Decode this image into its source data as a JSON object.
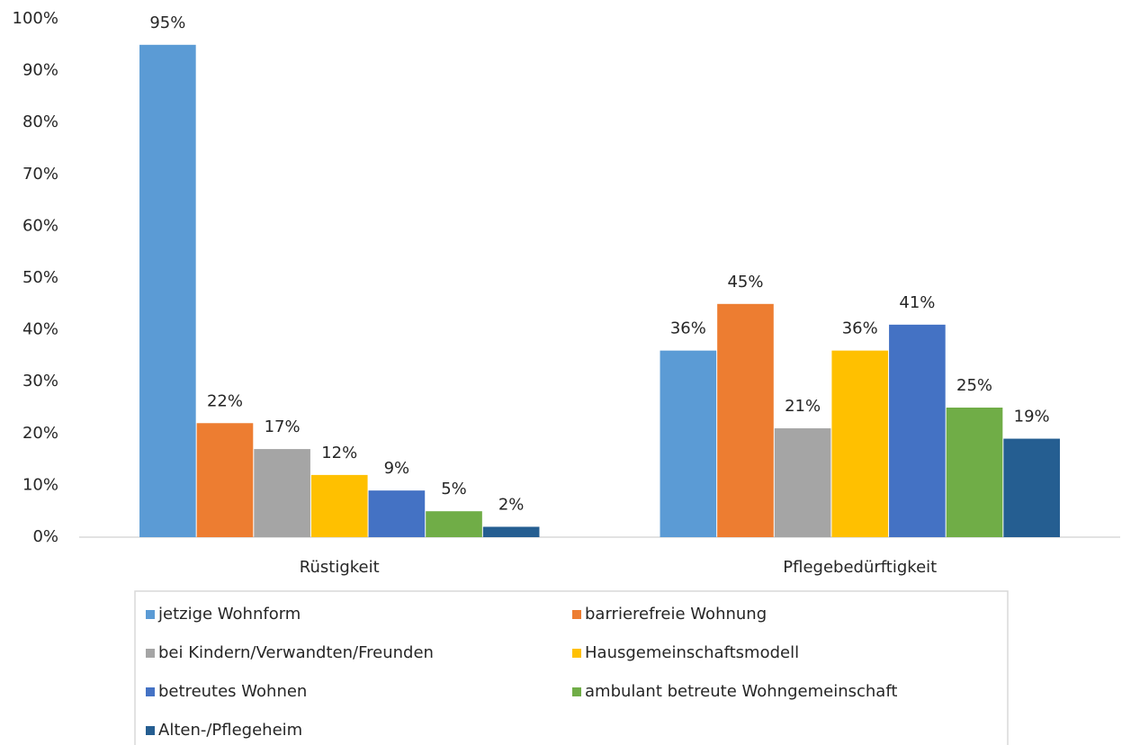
{
  "chart_data": {
    "type": "bar",
    "categories": [
      "Rüstigkeit",
      "Pflegebedürftigkeit"
    ],
    "series": [
      {
        "name": "jetzige Wohnform",
        "color": "#5b9bd5",
        "values": [
          95,
          36
        ],
        "value_labels": [
          "95%",
          "36%"
        ]
      },
      {
        "name": "barrierefreie Wohnung",
        "color": "#ed7d31",
        "values": [
          22,
          45
        ],
        "value_labels": [
          "22%",
          "45%"
        ]
      },
      {
        "name": "bei Kindern/Verwandten/Freunden",
        "color": "#a5a5a5",
        "values": [
          17,
          21
        ],
        "value_labels": [
          "17%",
          "21%"
        ]
      },
      {
        "name": "Hausgemeinschaftsmodell",
        "color": "#ffc000",
        "values": [
          12,
          36
        ],
        "value_labels": [
          "12%",
          "36%"
        ]
      },
      {
        "name": "betreutes Wohnen",
        "color": "#4472c4",
        "values": [
          9,
          41
        ],
        "value_labels": [
          "9%",
          "41%"
        ]
      },
      {
        "name": "ambulant betreute Wohngemeinschaft",
        "color": "#70ad47",
        "values": [
          5,
          25
        ],
        "value_labels": [
          "5%",
          "25%"
        ]
      },
      {
        "name": "Alten-/Pflegeheim",
        "color": "#255e91",
        "values": [
          2,
          19
        ],
        "value_labels": [
          "2%",
          "19%"
        ]
      }
    ],
    "ylim": [
      0,
      100
    ],
    "yticks": [
      {
        "value": 0,
        "label": "0%"
      },
      {
        "value": 10,
        "label": "10%"
      },
      {
        "value": 20,
        "label": "20%"
      },
      {
        "value": 30,
        "label": "30%"
      },
      {
        "value": 40,
        "label": "40%"
      },
      {
        "value": 50,
        "label": "50%"
      },
      {
        "value": 60,
        "label": "60%"
      },
      {
        "value": 70,
        "label": "70%"
      },
      {
        "value": 80,
        "label": "80%"
      },
      {
        "value": 90,
        "label": "90%"
      },
      {
        "value": 100,
        "label": "100%"
      }
    ],
    "grid": false
  }
}
